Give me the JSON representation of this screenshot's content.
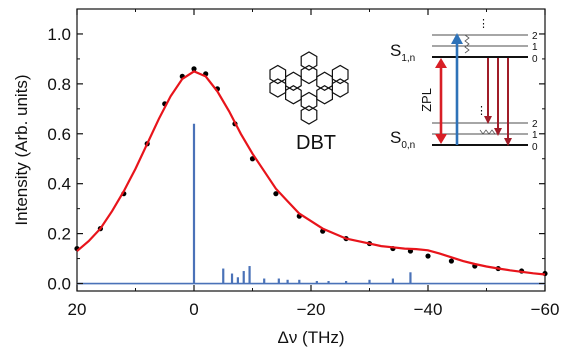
{
  "chart_data": {
    "type": "scatter",
    "xlabel": "Δν (THz)",
    "ylabel": "Intensity (Arb. units)",
    "xlim": [
      20,
      -60
    ],
    "ylim": [
      -0.03,
      1.1
    ],
    "x_reversed": true,
    "xticks": [
      20,
      0,
      -20,
      -40,
      -60
    ],
    "yticks": [
      0.0,
      0.2,
      0.4,
      0.6,
      0.8,
      1.0
    ],
    "ytick_labels": [
      "0.0",
      "0.2",
      "0.4",
      "0.6",
      "0.8",
      "1.0"
    ],
    "grid": false,
    "series": [
      {
        "kind": "points",
        "color": "#000000",
        "x": [
          20,
          16,
          12,
          8,
          5,
          2,
          0,
          -2,
          -4,
          -7,
          -10,
          -14,
          -18,
          -22,
          -26,
          -30,
          -34,
          -37,
          -40,
          -44,
          -48,
          -52,
          -56,
          -60
        ],
        "y": [
          0.14,
          0.22,
          0.36,
          0.56,
          0.72,
          0.83,
          0.86,
          0.84,
          0.78,
          0.64,
          0.5,
          0.36,
          0.27,
          0.21,
          0.18,
          0.16,
          0.14,
          0.13,
          0.11,
          0.09,
          0.07,
          0.06,
          0.05,
          0.04
        ]
      },
      {
        "kind": "fit-line",
        "color": "#e8141b",
        "x": [
          20,
          18,
          16,
          14,
          12,
          10,
          8,
          6,
          4,
          2,
          0,
          -2,
          -4,
          -6,
          -8,
          -10,
          -12,
          -14,
          -16,
          -18,
          -20,
          -22,
          -24,
          -26,
          -28,
          -30,
          -32,
          -34,
          -36,
          -38,
          -40,
          -42,
          -44,
          -46,
          -48,
          -50,
          -52,
          -54,
          -56,
          -58,
          -60
        ],
        "y": [
          0.13,
          0.17,
          0.22,
          0.29,
          0.37,
          0.46,
          0.56,
          0.66,
          0.75,
          0.82,
          0.85,
          0.83,
          0.77,
          0.69,
          0.6,
          0.52,
          0.45,
          0.38,
          0.33,
          0.28,
          0.25,
          0.22,
          0.2,
          0.18,
          0.17,
          0.16,
          0.15,
          0.145,
          0.14,
          0.138,
          0.133,
          0.12,
          0.105,
          0.09,
          0.078,
          0.068,
          0.06,
          0.053,
          0.047,
          0.041,
          0.036
        ]
      },
      {
        "kind": "sticks",
        "color": "#4a72b8",
        "x": [
          0,
          -5,
          -6.5,
          -7.5,
          -8.5,
          -9.5,
          -12,
          -14.5,
          -16,
          -18,
          -21,
          -23,
          -26,
          -30,
          -34,
          -37
        ],
        "y": [
          0.64,
          0.06,
          0.04,
          0.025,
          0.05,
          0.07,
          0.02,
          0.02,
          0.015,
          0.015,
          0.01,
          0.01,
          0.01,
          0.015,
          0.02,
          0.045
        ]
      }
    ]
  },
  "inset_molecule": {
    "label": "DBT"
  },
  "energy_diagram": {
    "upper_state": {
      "label": "S",
      "subscript": "1,n"
    },
    "lower_state": {
      "label": "S",
      "subscript": "0,n"
    },
    "upper_levels": [
      "2",
      "1",
      "0"
    ],
    "lower_levels": [
      "2",
      "1",
      "0"
    ],
    "dots": "⋮",
    "zpl_label": "ZPL",
    "colors": {
      "absorption": "#2e72b8",
      "emission": "#a01c28",
      "zpl": "#d81f26"
    }
  }
}
